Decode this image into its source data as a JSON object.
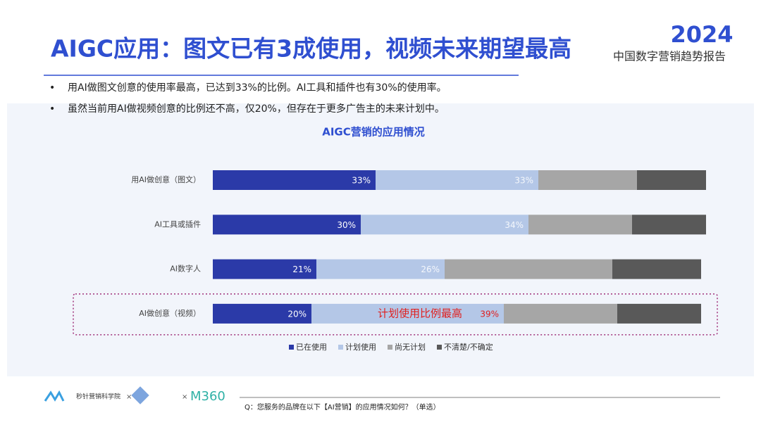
{
  "header": {
    "title": "AIGC应用：图文已有3成使用，视频未来期望最高",
    "logo_year": "2024",
    "report_name": "中国数字营销趋势报告"
  },
  "bullets": [
    "用AI做图文创意的使用率最高，已达到33%的比例。AI工具和插件也有30%的使用率。",
    "虽然当前用AI做视频创意的比例还不高，仅20%，但存在于更多广告主的未来计划中。"
  ],
  "chart_data": {
    "type": "stacked-bar-horizontal",
    "title": "AIGC营销的应用情况",
    "categories": [
      "用AI做创意（图文）",
      "AI工具或插件",
      "AI数字人",
      "AI做创意（视频）"
    ],
    "series": [
      {
        "name": "已在使用",
        "color": "#2b3aa8",
        "values": [
          33,
          30,
          21,
          20
        ],
        "value_labels": [
          "33%",
          "30%",
          "21%",
          "20%"
        ]
      },
      {
        "name": "计划使用",
        "color": "#b4c7e7",
        "values": [
          33,
          34,
          26,
          39
        ],
        "value_labels": [
          "33%",
          "34%",
          "26%",
          "39%"
        ]
      },
      {
        "name": "尚无计划",
        "color": "#a6a6a6",
        "values": [
          20,
          21,
          34,
          23
        ]
      },
      {
        "name": "不清楚/不确定",
        "color": "#595959",
        "values": [
          14,
          15,
          18,
          17
        ]
      }
    ],
    "xlim": [
      0,
      100
    ],
    "annotation": "计划使用比例最高"
  },
  "footer": {
    "question": "Q：您服务的品牌在以下【AI营销】的应用情况如何？（单选）",
    "partner_1": "秒针营销科学院",
    "separator": "×",
    "partner_3": "M360"
  }
}
